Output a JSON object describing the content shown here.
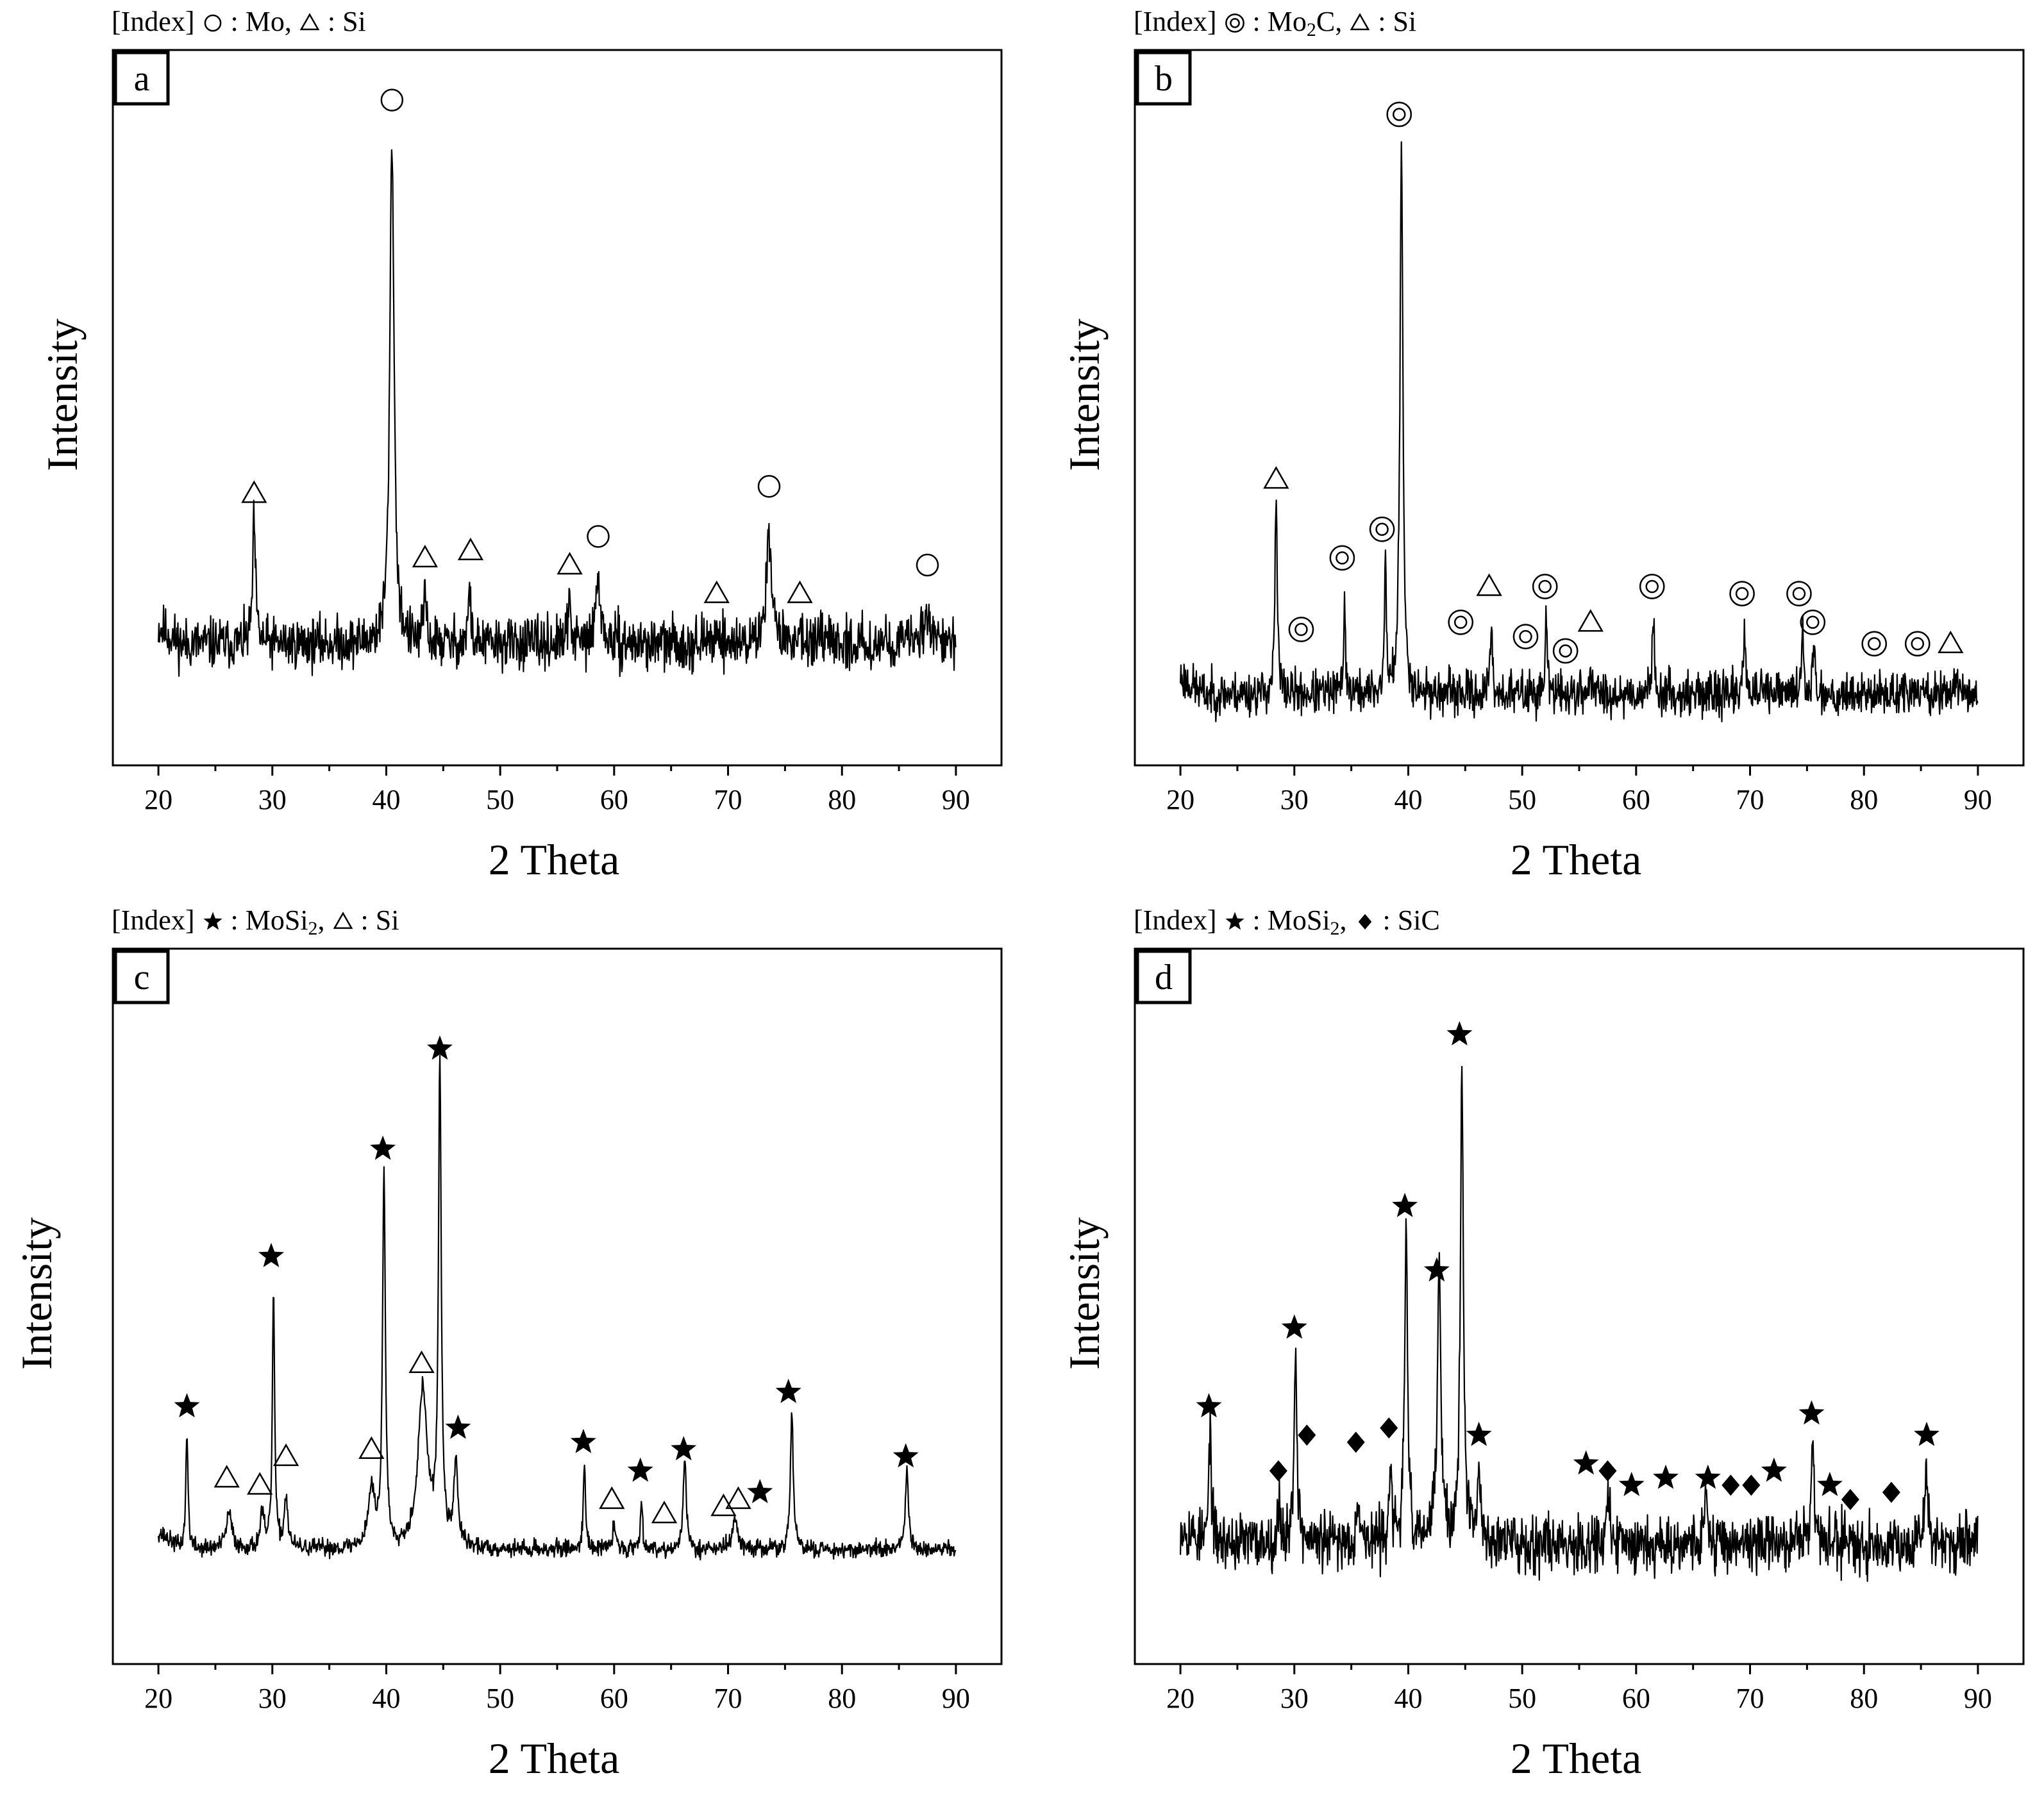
{
  "chart_data": [
    {
      "type": "line",
      "panel_label": "a",
      "index": [
        {
          "symbol": "circle",
          "text": ": Mo, "
        },
        {
          "symbol": "triangle",
          "text": ": Si"
        }
      ],
      "index_prefix": "[Index]",
      "xlabel": "2 Theta",
      "ylabel": "Intensity",
      "xlim": [
        16,
        94
      ],
      "ylim": [
        0,
        100
      ],
      "xticks": [
        20,
        30,
        40,
        50,
        60,
        70,
        80,
        90
      ],
      "baseline": 17,
      "noise": 3.5,
      "seed": 11,
      "peaks": [
        {
          "x": 28.4,
          "h": 17,
          "w": 0.15
        },
        {
          "x": 40.5,
          "h": 71,
          "w": 0.22
        },
        {
          "x": 43.4,
          "h": 8,
          "w": 0.12
        },
        {
          "x": 47.3,
          "h": 8,
          "w": 0.12
        },
        {
          "x": 56.1,
          "h": 6,
          "w": 0.15
        },
        {
          "x": 58.6,
          "h": 9,
          "w": 0.25
        },
        {
          "x": 69.1,
          "h": 3,
          "w": 0.15
        },
        {
          "x": 73.6,
          "h": 16,
          "w": 0.28
        },
        {
          "x": 76.4,
          "h": 3,
          "w": 0.15
        },
        {
          "x": 87.5,
          "h": 4,
          "w": 0.5
        }
      ],
      "markers": [
        {
          "symbol": "triangle",
          "x": 28.4,
          "y": 38
        },
        {
          "symbol": "circle",
          "x": 40.5,
          "y": 93
        },
        {
          "symbol": "triangle",
          "x": 43.4,
          "y": 29
        },
        {
          "symbol": "triangle",
          "x": 47.4,
          "y": 30
        },
        {
          "symbol": "triangle",
          "x": 56.1,
          "y": 28
        },
        {
          "symbol": "circle",
          "x": 58.6,
          "y": 32
        },
        {
          "symbol": "triangle",
          "x": 69.0,
          "y": 24
        },
        {
          "symbol": "circle",
          "x": 73.6,
          "y": 39
        },
        {
          "symbol": "triangle",
          "x": 76.3,
          "y": 24
        },
        {
          "symbol": "circle",
          "x": 87.5,
          "y": 28
        }
      ]
    },
    {
      "type": "line",
      "panel_label": "b",
      "index": [
        {
          "symbol": "double-circle",
          "text": ": Mo",
          "sub": "2",
          "text2": "C, "
        },
        {
          "symbol": "triangle",
          "text": ": Si"
        }
      ],
      "index_prefix": "[Index]",
      "xlabel": "2 Theta",
      "ylabel": "Intensity",
      "xlim": [
        16,
        94
      ],
      "ylim": [
        0,
        100
      ],
      "xticks": [
        20,
        30,
        40,
        50,
        60,
        70,
        80,
        90
      ],
      "baseline": 10,
      "noise": 3,
      "seed": 23,
      "peaks": [
        {
          "x": 28.4,
          "h": 27,
          "w": 0.12
        },
        {
          "x": 34.4,
          "h": 13,
          "w": 0.1
        },
        {
          "x": 38.0,
          "h": 18,
          "w": 0.1
        },
        {
          "x": 39.4,
          "h": 77,
          "w": 0.15
        },
        {
          "x": 47.3,
          "h": 10,
          "w": 0.1
        },
        {
          "x": 52.1,
          "h": 11,
          "w": 0.1
        },
        {
          "x": 56.0,
          "h": 4,
          "w": 0.1
        },
        {
          "x": 61.5,
          "h": 10,
          "w": 0.12
        },
        {
          "x": 69.5,
          "h": 9,
          "w": 0.12
        },
        {
          "x": 74.6,
          "h": 9,
          "w": 0.12
        },
        {
          "x": 75.6,
          "h": 6,
          "w": 0.12
        },
        {
          "x": 87.9,
          "h": 3,
          "w": 0.1
        }
      ],
      "markers": [
        {
          "symbol": "triangle",
          "x": 28.4,
          "y": 40
        },
        {
          "symbol": "double-circle",
          "x": 30.6,
          "y": 19
        },
        {
          "symbol": "double-circle",
          "x": 34.2,
          "y": 29
        },
        {
          "symbol": "double-circle",
          "x": 37.7,
          "y": 33
        },
        {
          "symbol": "double-circle",
          "x": 39.2,
          "y": 91
        },
        {
          "symbol": "double-circle",
          "x": 44.6,
          "y": 20
        },
        {
          "symbol": "triangle",
          "x": 47.1,
          "y": 25
        },
        {
          "symbol": "double-circle",
          "x": 50.3,
          "y": 18
        },
        {
          "symbol": "double-circle",
          "x": 52.0,
          "y": 25
        },
        {
          "symbol": "double-circle",
          "x": 53.8,
          "y": 16
        },
        {
          "symbol": "triangle",
          "x": 56.0,
          "y": 20
        },
        {
          "symbol": "double-circle",
          "x": 61.4,
          "y": 25
        },
        {
          "symbol": "double-circle",
          "x": 69.3,
          "y": 24
        },
        {
          "symbol": "double-circle",
          "x": 74.3,
          "y": 24
        },
        {
          "symbol": "double-circle",
          "x": 75.5,
          "y": 20
        },
        {
          "symbol": "double-circle",
          "x": 80.9,
          "y": 17
        },
        {
          "symbol": "double-circle",
          "x": 84.7,
          "y": 17
        },
        {
          "symbol": "triangle",
          "x": 87.6,
          "y": 17
        }
      ]
    },
    {
      "type": "line",
      "panel_label": "c",
      "index": [
        {
          "symbol": "star",
          "text": ": MoSi",
          "sub": "2",
          "text2": ", "
        },
        {
          "symbol": "triangle",
          "text": ": Si"
        }
      ],
      "index_prefix": "[Index]",
      "xlabel": "2 Theta",
      "ylabel": "Intensity",
      "xlim": [
        16,
        94
      ],
      "ylim": [
        0,
        100
      ],
      "xticks": [
        20,
        30,
        40,
        50,
        60,
        70,
        80,
        90
      ],
      "baseline": 16,
      "noise": 1.2,
      "seed": 37,
      "peaks": [
        {
          "x": 22.5,
          "h": 16,
          "w": 0.12
        },
        {
          "x": 26.2,
          "h": 5,
          "w": 0.3
        },
        {
          "x": 29.1,
          "h": 5,
          "w": 0.2
        },
        {
          "x": 30.1,
          "h": 36,
          "w": 0.12
        },
        {
          "x": 31.2,
          "h": 7,
          "w": 0.2
        },
        {
          "x": 38.7,
          "h": 8,
          "w": 0.35
        },
        {
          "x": 39.8,
          "h": 52,
          "w": 0.15
        },
        {
          "x": 43.2,
          "h": 22,
          "w": 0.5
        },
        {
          "x": 44.7,
          "h": 66,
          "w": 0.15
        },
        {
          "x": 46.1,
          "h": 12,
          "w": 0.2
        },
        {
          "x": 57.4,
          "h": 12,
          "w": 0.12
        },
        {
          "x": 60.0,
          "h": 3,
          "w": 0.2
        },
        {
          "x": 62.4,
          "h": 7,
          "w": 0.12
        },
        {
          "x": 66.2,
          "h": 13,
          "w": 0.15
        },
        {
          "x": 70.6,
          "h": 4,
          "w": 0.3
        },
        {
          "x": 75.6,
          "h": 19,
          "w": 0.15
        },
        {
          "x": 85.7,
          "h": 11,
          "w": 0.15
        }
      ],
      "markers": [
        {
          "symbol": "star",
          "x": 22.5,
          "y": 36
        },
        {
          "symbol": "triangle",
          "x": 26.0,
          "y": 26
        },
        {
          "symbol": "triangle",
          "x": 28.9,
          "y": 25
        },
        {
          "symbol": "star",
          "x": 29.9,
          "y": 57
        },
        {
          "symbol": "triangle",
          "x": 31.2,
          "y": 29
        },
        {
          "symbol": "triangle",
          "x": 38.7,
          "y": 30
        },
        {
          "symbol": "star",
          "x": 39.7,
          "y": 72
        },
        {
          "symbol": "triangle",
          "x": 43.1,
          "y": 42
        },
        {
          "symbol": "star",
          "x": 44.7,
          "y": 86
        },
        {
          "symbol": "star",
          "x": 46.3,
          "y": 33
        },
        {
          "symbol": "star",
          "x": 57.3,
          "y": 31
        },
        {
          "symbol": "triangle",
          "x": 59.8,
          "y": 23
        },
        {
          "symbol": "star",
          "x": 62.3,
          "y": 27
        },
        {
          "symbol": "triangle",
          "x": 64.4,
          "y": 21
        },
        {
          "symbol": "star",
          "x": 66.1,
          "y": 30
        },
        {
          "symbol": "triangle",
          "x": 69.6,
          "y": 22
        },
        {
          "symbol": "triangle",
          "x": 70.9,
          "y": 23
        },
        {
          "symbol": "star",
          "x": 72.8,
          "y": 24
        },
        {
          "symbol": "star",
          "x": 75.3,
          "y": 38
        },
        {
          "symbol": "star",
          "x": 85.6,
          "y": 29
        }
      ]
    },
    {
      "type": "line",
      "panel_label": "d",
      "index": [
        {
          "symbol": "star",
          "text": ": MoSi",
          "sub": "2",
          "text2": ", "
        },
        {
          "symbol": "diamond",
          "text": ": SiC"
        }
      ],
      "index_prefix": "[Index]",
      "xlabel": "2 Theta",
      "ylabel": "Intensity",
      "xlim": [
        16,
        94
      ],
      "ylim": [
        0,
        100
      ],
      "xticks": [
        20,
        30,
        40,
        50,
        60,
        70,
        80,
        90
      ],
      "baseline": 17,
      "noise": 4,
      "seed": 53,
      "peaks": [
        {
          "x": 22.6,
          "h": 17,
          "w": 0.12
        },
        {
          "x": 28.7,
          "h": 5,
          "w": 0.15
        },
        {
          "x": 30.1,
          "h": 27,
          "w": 0.15
        },
        {
          "x": 35.6,
          "h": 7,
          "w": 0.15
        },
        {
          "x": 38.4,
          "h": 10,
          "w": 0.15
        },
        {
          "x": 39.8,
          "h": 44,
          "w": 0.15
        },
        {
          "x": 42.7,
          "h": 37,
          "w": 0.2
        },
        {
          "x": 44.7,
          "h": 68,
          "w": 0.15
        },
        {
          "x": 46.2,
          "h": 10,
          "w": 0.15
        },
        {
          "x": 57.5,
          "h": 6,
          "w": 0.15
        },
        {
          "x": 66.1,
          "h": 6,
          "w": 0.15
        },
        {
          "x": 75.5,
          "h": 14,
          "w": 0.15
        },
        {
          "x": 85.5,
          "h": 11,
          "w": 0.15
        }
      ],
      "markers": [
        {
          "symbol": "star",
          "x": 22.5,
          "y": 36
        },
        {
          "symbol": "diamond",
          "x": 28.6,
          "y": 27
        },
        {
          "symbol": "star",
          "x": 30.0,
          "y": 47
        },
        {
          "symbol": "diamond",
          "x": 31.1,
          "y": 32
        },
        {
          "symbol": "diamond",
          "x": 35.4,
          "y": 31
        },
        {
          "symbol": "diamond",
          "x": 38.3,
          "y": 33
        },
        {
          "symbol": "star",
          "x": 39.7,
          "y": 64
        },
        {
          "symbol": "star",
          "x": 42.5,
          "y": 55
        },
        {
          "symbol": "star",
          "x": 44.5,
          "y": 88
        },
        {
          "symbol": "star",
          "x": 46.2,
          "y": 32
        },
        {
          "symbol": "star",
          "x": 55.6,
          "y": 28
        },
        {
          "symbol": "diamond",
          "x": 57.5,
          "y": 27
        },
        {
          "symbol": "star",
          "x": 59.6,
          "y": 25
        },
        {
          "symbol": "star",
          "x": 62.6,
          "y": 26
        },
        {
          "symbol": "star",
          "x": 66.3,
          "y": 26
        },
        {
          "symbol": "diamond",
          "x": 68.3,
          "y": 25
        },
        {
          "symbol": "diamond",
          "x": 70.1,
          "y": 25
        },
        {
          "symbol": "star",
          "x": 72.1,
          "y": 27
        },
        {
          "symbol": "star",
          "x": 75.4,
          "y": 35
        },
        {
          "symbol": "star",
          "x": 77.0,
          "y": 25
        },
        {
          "symbol": "diamond",
          "x": 78.8,
          "y": 23
        },
        {
          "symbol": "diamond",
          "x": 82.4,
          "y": 24
        },
        {
          "symbol": "star",
          "x": 85.5,
          "y": 32
        }
      ]
    }
  ]
}
